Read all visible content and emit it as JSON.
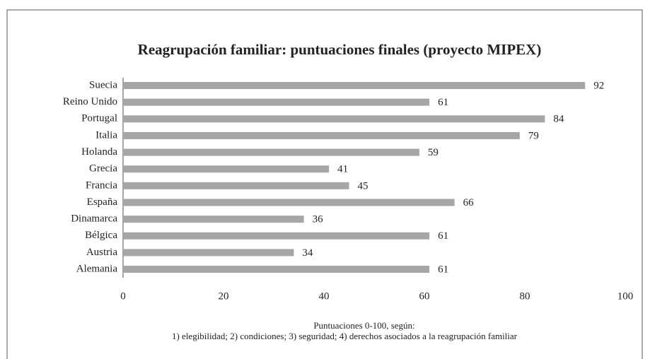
{
  "chart_data": {
    "type": "bar",
    "orientation": "horizontal",
    "title": "Reagrupación familiar: puntuaciones finales (proyecto MIPEX)",
    "categories": [
      "Suecia",
      "Reino Unido",
      "Portugal",
      "Italia",
      "Holanda",
      "Grecia",
      "Francia",
      "España",
      "Dinamarca",
      "Bélgica",
      "Austria",
      "Alemania"
    ],
    "values": [
      92,
      61,
      84,
      79,
      59,
      41,
      45,
      66,
      36,
      61,
      34,
      61
    ],
    "color": "#a6a6a6",
    "xlim": [
      0,
      100
    ],
    "xticks": [
      0,
      20,
      40,
      60,
      80,
      100
    ],
    "grid": false,
    "xlabel": [
      "Puntuaciones 0-100, según:",
      "1) elegibilidad; 2) condiciones; 3) seguridad; 4) derechos asociados a la reagrupación familiar"
    ]
  }
}
